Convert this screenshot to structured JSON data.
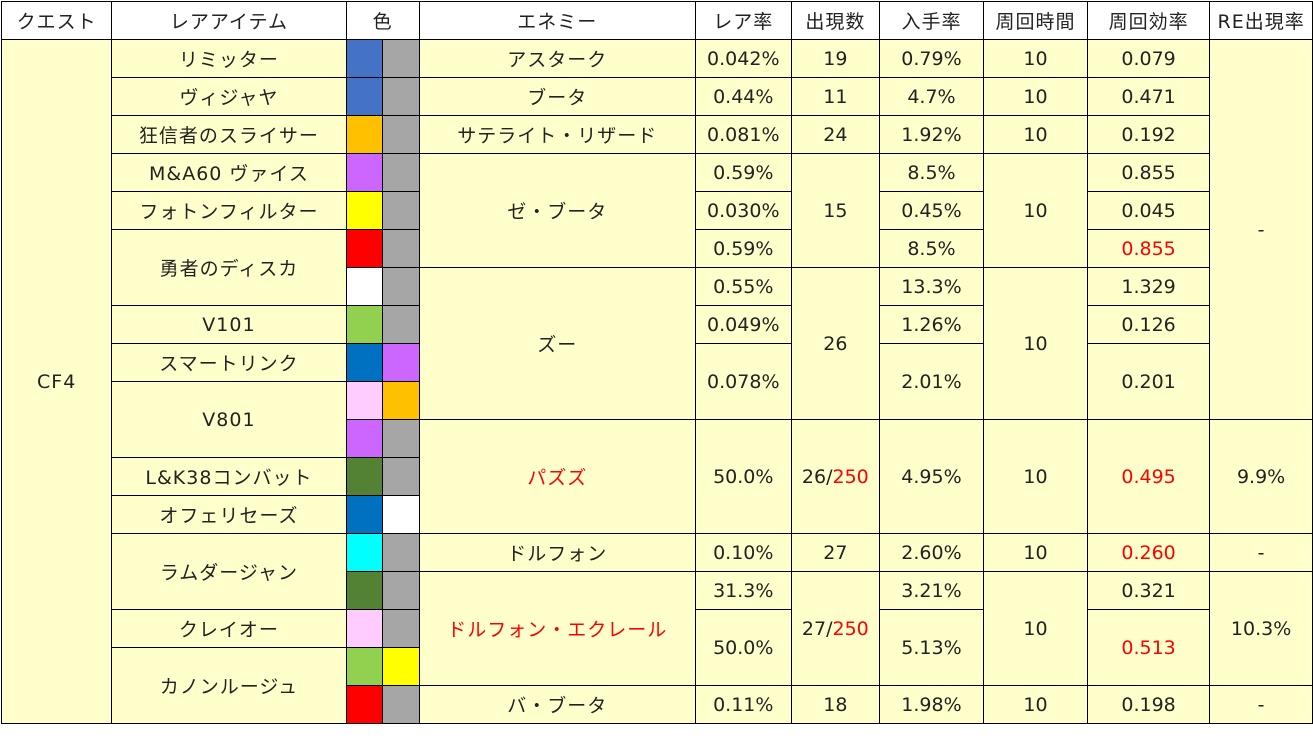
{
  "headers": {
    "quest": "クエスト",
    "item": "レアアイテム",
    "color": "色",
    "enemy": "エネミー",
    "rare_rate": "レア率",
    "appear": "出現数",
    "get_rate": "入手率",
    "lap_time": "周回時間",
    "lap_eff": "周回効率",
    "re_rate": "RE出現率"
  },
  "quest": "CF4",
  "items": {
    "i1": "リミッター",
    "i2": "ヴィジャヤ",
    "i3": "狂信者のスライサー",
    "i4": "M&A60 ヴァイス",
    "i5": "フォトンフィルター",
    "i6": "勇者のディスカ",
    "i7": "V101",
    "i8": "スマートリンク",
    "i9": "V801",
    "i10": "L&K38コンバット",
    "i11": "オフェリセーズ",
    "i12": "ラムダージャン",
    "i13": "クレイオー",
    "i14": "カノンルージュ"
  },
  "enemies": {
    "e1": "アスターク",
    "e2": "ブータ",
    "e3": "サテライト・リザード",
    "e4": "ゼ・ブータ",
    "e5": "ズー",
    "e6": "パズズ",
    "e7": "ドルフォン",
    "e8": "ドルフォン・エクレール",
    "e9": "バ・ブータ"
  },
  "rare_rates": {
    "r1": "0.042%",
    "r2": "0.44%",
    "r3": "0.081%",
    "r4": "0.59%",
    "r5": "0.030%",
    "r6": "0.59%",
    "r7": "0.55%",
    "r8": "0.049%",
    "r9": "0.078%",
    "r10": "50.0%",
    "r11": "0.10%",
    "r12": "31.3%",
    "r13": "50.0%",
    "r14": "0.11%"
  },
  "appear": {
    "a1": "19",
    "a2": "11",
    "a3": "24",
    "a4": "15",
    "a5": "26",
    "a6": "26",
    "a6_total": "250",
    "a7": "27",
    "a8": "27",
    "a8_total": "250",
    "a9": "18"
  },
  "slash": "/",
  "get_rates": {
    "g1": "0.79%",
    "g2": "4.7%",
    "g3": "1.92%",
    "g4": "8.5%",
    "g5": "0.45%",
    "g6": "8.5%",
    "g7": "13.3%",
    "g8": "1.26%",
    "g9": "2.01%",
    "g10": "4.95%",
    "g11": "2.60%",
    "g12": "3.21%",
    "g13": "5.13%",
    "g14": "1.98%"
  },
  "lap_time": "10",
  "lap_eff": {
    "f1": "0.079",
    "f2": "0.471",
    "f3": "0.192",
    "f4": "0.855",
    "f5": "0.045",
    "f6": "0.855",
    "f7": "1.329",
    "f8": "0.126",
    "f9": "0.201",
    "f10": "0.495",
    "f11": "0.260",
    "f12": "0.321",
    "f13": "0.513",
    "f14": "0.198"
  },
  "re_rates": {
    "re1": "-",
    "re2": "9.9%",
    "re3": "-",
    "re4": "10.3%",
    "re5": "-"
  },
  "colors": {
    "header_bg": "#ffffff",
    "cell_bg": "#ffffcc",
    "border": "#000000",
    "highlight_red": "#ff0000",
    "swatch_blue": "#4472c4",
    "swatch_gray": "#a6a6a6",
    "swatch_orange": "#ffc000",
    "swatch_purple": "#cc66ff",
    "swatch_yellow": "#ffff00",
    "swatch_red": "#ff0000",
    "swatch_white": "#ffffff",
    "swatch_light_green": "#92d050",
    "swatch_dark_blue": "#0070c0",
    "swatch_pink": "#ffccff",
    "swatch_dark_green": "#548235",
    "swatch_cyan": "#00ffff"
  }
}
